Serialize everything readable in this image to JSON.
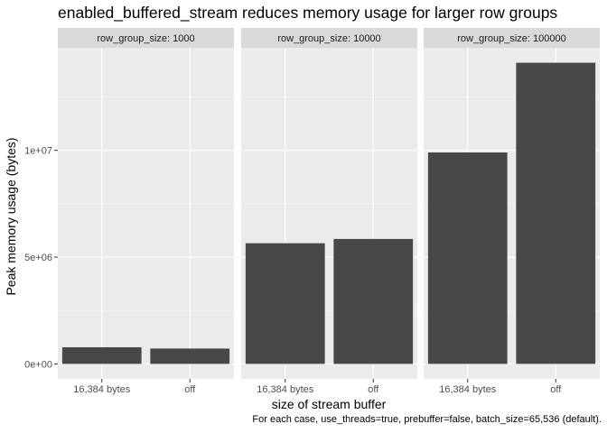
{
  "chart_data": {
    "type": "bar",
    "title": "enabled_buffered_stream reduces memory usage for larger row groups",
    "xlabel": "size of stream buffer",
    "ylabel": "Peak memory usage (bytes)",
    "caption": "For each case, use_threads=true, prebuffer=false, batch_size=65,536 (default).",
    "categories": [
      "16,384 bytes",
      "off"
    ],
    "facet_var": "row_group_size",
    "facets": [
      {
        "label": "row_group_size: 1000",
        "values": [
          780000,
          720000
        ]
      },
      {
        "label": "row_group_size: 10000",
        "values": [
          5650000,
          5850000
        ]
      },
      {
        "label": "row_group_size: 100000",
        "values": [
          9900000,
          14100000
        ]
      }
    ],
    "y_ticks": [
      {
        "value": 0,
        "label": "0e+00"
      },
      {
        "value": 5000000,
        "label": "5e+06"
      },
      {
        "value": 10000000,
        "label": "1e+07"
      }
    ],
    "ylim": [
      -700000,
      14800000
    ],
    "bar_color": "#474747",
    "panel_color": "#ebebeb",
    "strip_color": "#d9d9d9",
    "grid": true,
    "legend": "none"
  }
}
